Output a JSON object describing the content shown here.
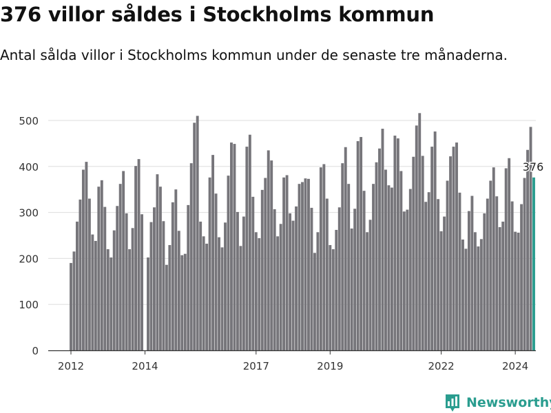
{
  "header": {
    "title": "376 villor såldes i Stockholms kommun",
    "subtitle": "Antal sålda villor i Stockholms kommun under de senaste tre månaderna."
  },
  "brand": {
    "name": "Newsworthy",
    "icon": "newsworthy-logo-icon"
  },
  "colors": {
    "bar": "#76757a",
    "highlight": "#2a9d8f",
    "grid": "#dddddd",
    "text": "#333333"
  },
  "chart_data": {
    "type": "bar",
    "title": "376 villor såldes i Stockholms kommun",
    "xlabel": "",
    "ylabel": "",
    "ylim": [
      0,
      530
    ],
    "yticks": [
      0,
      100,
      200,
      300,
      400,
      500
    ],
    "xticks": [
      {
        "label": "2012",
        "year": 2012
      },
      {
        "label": "2014",
        "year": 2014
      },
      {
        "label": "2017",
        "year": 2017
      },
      {
        "label": "2019",
        "year": 2019
      },
      {
        "label": "2022",
        "year": 2022
      },
      {
        "label": "2024",
        "year": 2024
      }
    ],
    "start": "2012-01",
    "highlight_label": "376",
    "series": [
      {
        "name": "Antal sålda villor",
        "values": [
          190,
          215,
          280,
          328,
          393,
          410,
          330,
          252,
          238,
          356,
          370,
          312,
          220,
          202,
          261,
          314,
          362,
          390,
          298,
          220,
          266,
          401,
          416,
          296,
          0,
          202,
          279,
          311,
          383,
          356,
          281,
          186,
          229,
          322,
          350,
          260,
          207,
          210,
          316,
          407,
          495,
          510,
          280,
          248,
          232,
          376,
          425,
          341,
          246,
          224,
          278,
          380,
          452,
          449,
          301,
          227,
          291,
          443,
          469,
          334,
          257,
          244,
          349,
          375,
          435,
          413,
          307,
          248,
          275,
          376,
          381,
          298,
          282,
          313,
          362,
          366,
          374,
          373,
          310,
          212,
          257,
          398,
          405,
          330,
          229,
          220,
          262,
          311,
          407,
          442,
          362,
          265,
          308,
          455,
          464,
          347,
          257,
          284,
          362,
          409,
          439,
          482,
          393,
          359,
          354,
          467,
          461,
          390,
          302,
          306,
          351,
          421,
          489,
          516,
          423,
          323,
          344,
          443,
          476,
          329,
          259,
          291,
          369,
          422,
          443,
          452,
          343,
          241,
          221,
          303,
          336,
          257,
          226,
          242,
          298,
          330,
          369,
          398,
          335,
          268,
          280,
          396,
          418,
          324,
          258,
          256,
          318,
          375,
          436,
          486,
          376
        ]
      }
    ]
  }
}
